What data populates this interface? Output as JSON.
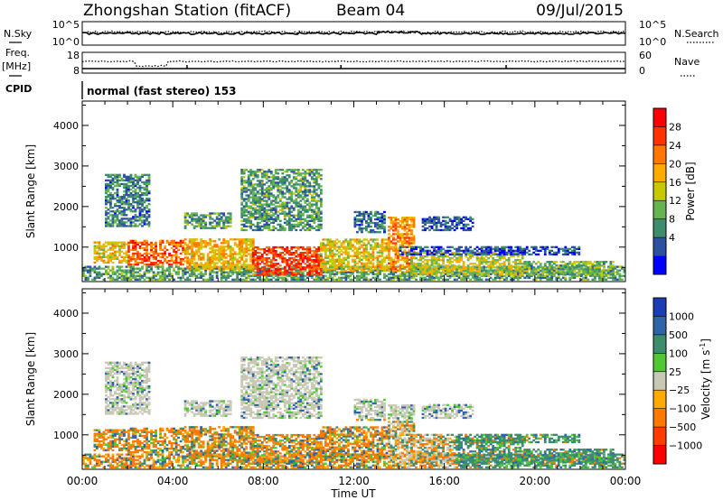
{
  "header": {
    "title": "Zhongshan Station (fitACF)",
    "beam": "Beam 04",
    "date": "09/Jul/2015"
  },
  "noise_panel": {
    "left_label": "N.Sky",
    "right_label": "N.Search",
    "left_ticks": [
      "10^5",
      "10^0"
    ],
    "right_ticks": [
      "10^5",
      "10^0"
    ]
  },
  "freq_panel": {
    "left_label_top": "Freq.",
    "left_label_bottom": "[MHz]",
    "right_label": "Nave",
    "left_ticks": [
      "18",
      "8"
    ],
    "right_ticks": [
      "60",
      "0"
    ]
  },
  "cpid": {
    "label": "CPID",
    "text": "normal (fast stereo) 153"
  },
  "chart_data": [
    {
      "type": "heatmap",
      "name": "power",
      "ylabel": "Slant Range [km]",
      "yticks": [
        1000,
        2000,
        3000,
        4000
      ],
      "ylim": [
        150,
        4600
      ],
      "xlim": [
        0,
        24
      ],
      "xticks_minor_hours": 1,
      "colorbar": {
        "label": "Power [dB]",
        "ticks": [
          "28",
          "24",
          "20",
          "16",
          "12",
          "8",
          "4"
        ],
        "colors": [
          "#ff0000",
          "#ff3300",
          "#ff7700",
          "#ffaa00",
          "#c8c800",
          "#64b450",
          "#3c8c6e",
          "#2d50a0",
          "#0000ff"
        ]
      },
      "echo_regions": [
        {
          "t0": 0.0,
          "t1": 24.0,
          "r0": 180,
          "r1": 500,
          "level": 0.3
        },
        {
          "t0": 0.5,
          "t1": 2.0,
          "r0": 600,
          "r1": 1100,
          "level": 0.55
        },
        {
          "t0": 2.0,
          "t1": 4.5,
          "r0": 550,
          "r1": 1150,
          "level": 0.8
        },
        {
          "t0": 4.5,
          "t1": 7.5,
          "r0": 450,
          "r1": 1200,
          "level": 0.6
        },
        {
          "t0": 7.5,
          "t1": 10.5,
          "r0": 300,
          "r1": 1000,
          "level": 0.88
        },
        {
          "t0": 10.5,
          "t1": 13.5,
          "r0": 400,
          "r1": 1200,
          "level": 0.55
        },
        {
          "t0": 13.5,
          "t1": 14.6,
          "r0": 400,
          "r1": 1750,
          "level": 0.7
        },
        {
          "t0": 14.5,
          "t1": 19.5,
          "r0": 300,
          "r1": 850,
          "level": 0.5
        },
        {
          "t0": 19.5,
          "t1": 23.5,
          "r0": 300,
          "r1": 650,
          "level": 0.35
        },
        {
          "t0": 1.0,
          "t1": 3.0,
          "r0": 1500,
          "r1": 2800,
          "level": 0.22
        },
        {
          "t0": 4.5,
          "t1": 6.5,
          "r0": 1450,
          "r1": 1850,
          "level": 0.3
        },
        {
          "t0": 7.0,
          "t1": 10.5,
          "r0": 1400,
          "r1": 2900,
          "level": 0.3
        },
        {
          "t0": 12.0,
          "t1": 13.3,
          "r0": 1350,
          "r1": 1850,
          "level": 0.2
        },
        {
          "t0": 15.0,
          "t1": 17.3,
          "r0": 1400,
          "r1": 1750,
          "level": 0.12
        },
        {
          "t0": 14.0,
          "t1": 22.0,
          "r0": 800,
          "r1": 1000,
          "level": 0.12
        }
      ]
    },
    {
      "type": "heatmap",
      "name": "velocity",
      "xlabel": "Time UT",
      "ylabel": "Slant Range [km]",
      "yticks": [
        1000,
        2000,
        3000,
        4000
      ],
      "ylim": [
        150,
        4600
      ],
      "xlim": [
        0,
        24
      ],
      "xtick_labels": [
        "00:00",
        "04:00",
        "08:00",
        "12:00",
        "16:00",
        "20:00",
        "00:00"
      ],
      "colorbar": {
        "label": "Velocity [m s",
        "label_superscript": "-1",
        "label_suffix": "]",
        "ticks": [
          "1000",
          "500",
          "100",
          "25",
          "−25",
          "−100",
          "−500",
          "−1000"
        ],
        "colors": [
          "#1a3cb4",
          "#2d64aa",
          "#3c8c6e",
          "#50c832",
          "#c8c8b4",
          "#ffaa00",
          "#ff7800",
          "#ff3c00",
          "#ff0000"
        ]
      }
    }
  ]
}
